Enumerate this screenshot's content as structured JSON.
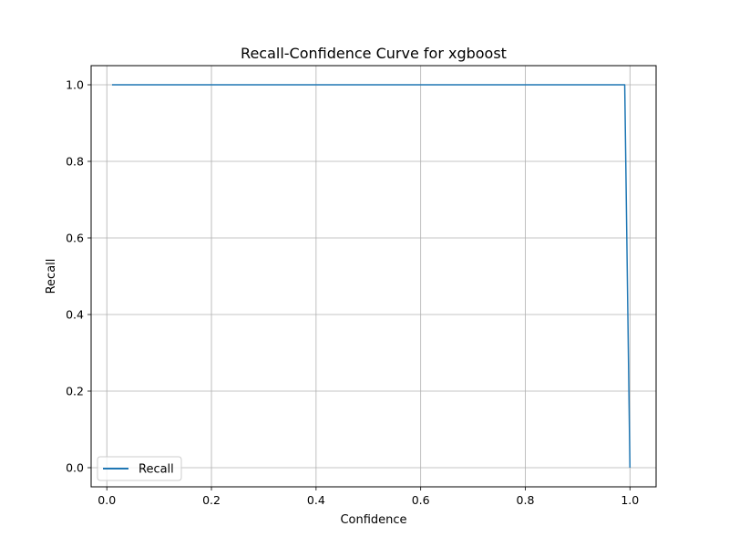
{
  "chart_data": {
    "type": "line",
    "title": "Recall-Confidence Curve for xgboost",
    "xlabel": "Confidence",
    "ylabel": "Recall",
    "xlim": [
      -0.03,
      1.05
    ],
    "ylim": [
      -0.05,
      1.05
    ],
    "xticks": [
      0.0,
      0.2,
      0.4,
      0.6,
      0.8,
      1.0
    ],
    "xtick_labels": [
      "0.0",
      "0.2",
      "0.4",
      "0.6",
      "0.8",
      "1.0"
    ],
    "yticks": [
      0.0,
      0.2,
      0.4,
      0.6,
      0.8,
      1.0
    ],
    "ytick_labels": [
      "0.0",
      "0.2",
      "0.4",
      "0.6",
      "0.8",
      "1.0"
    ],
    "grid": true,
    "legend_position": "lower-left",
    "series": [
      {
        "name": "Recall",
        "color": "#1f77b4",
        "x": [
          0.01,
          0.99,
          1.0
        ],
        "y": [
          1.0,
          1.0,
          0.0
        ]
      }
    ]
  }
}
